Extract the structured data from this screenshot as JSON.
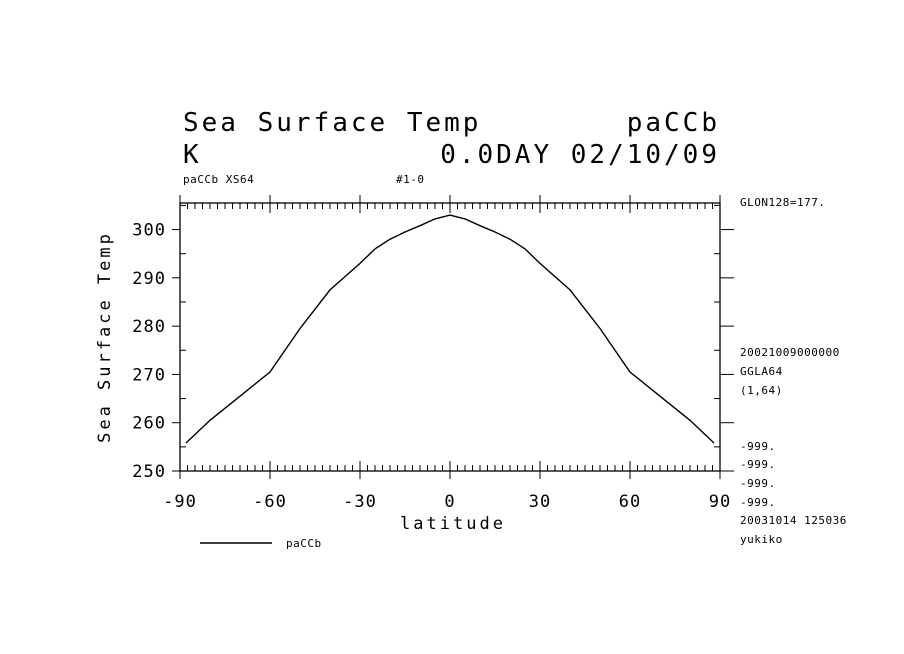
{
  "chart_data": {
    "type": "line",
    "title": "Sea Surface Temp",
    "title_right": "paCCb",
    "units": "K",
    "time_label": "0.0DAY 02/10/09",
    "subtitle_left": "paCCb XS64",
    "subtitle_mid": "#1-0",
    "xlabel": "latitude",
    "ylabel": "Sea Surface Temp",
    "xlim": [
      -90,
      90
    ],
    "ylim": [
      250,
      305
    ],
    "xticks": [
      -90,
      -60,
      -30,
      0,
      30,
      60,
      90
    ],
    "xtick_labels": [
      "-90",
      "-60",
      "-30",
      "0",
      "30",
      "60",
      "90"
    ],
    "yticks": [
      250,
      260,
      270,
      280,
      290,
      300
    ],
    "ytick_labels": [
      "250",
      "260",
      "270",
      "280",
      "290",
      "300"
    ],
    "series": [
      {
        "name": "paCCb",
        "x": [
          -88,
          -80,
          -70,
          -60,
          -50,
          -40,
          -30,
          -25,
          -20,
          -15,
          -10,
          -5,
          0,
          5,
          10,
          15,
          20,
          25,
          30,
          40,
          50,
          60,
          70,
          80,
          88
        ],
        "y": [
          255.8,
          260.5,
          265.5,
          270.5,
          279.5,
          287.5,
          293.0,
          296.0,
          298.0,
          299.5,
          300.8,
          302.2,
          303.0,
          302.2,
          300.8,
          299.5,
          298.0,
          296.0,
          293.0,
          287.5,
          279.5,
          270.5,
          265.5,
          260.5,
          255.8
        ]
      }
    ],
    "legend": {
      "position": "bottom-left",
      "entry": "paCCb"
    },
    "right_annotations": {
      "glon": "GLON128=177.",
      "datetime": "20021009000000",
      "grid": "GGLA64",
      "range": "(1,64)",
      "missing": [
        "-999.",
        "-999.",
        "-999.",
        "-999."
      ],
      "created": "20031014 125036",
      "user": "yukiko"
    }
  }
}
